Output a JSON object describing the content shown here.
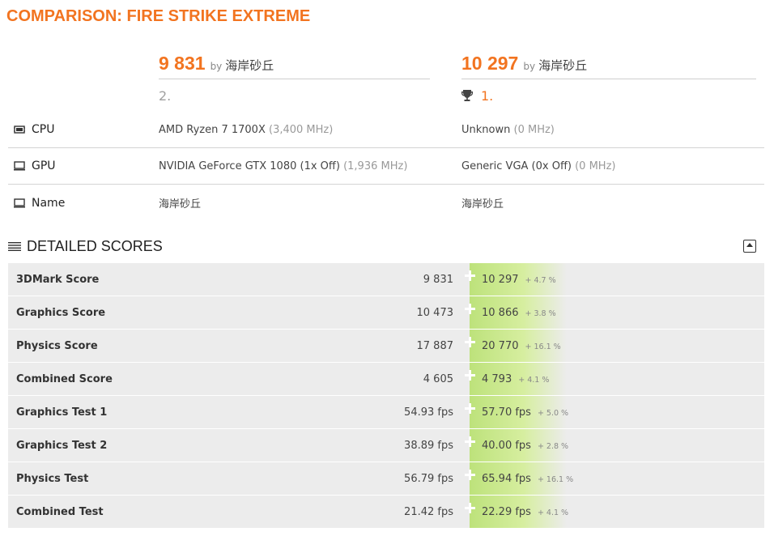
{
  "page": {
    "title": "COMPARISON: FIRE STRIKE EXTREME"
  },
  "results": [
    {
      "score": "9 831",
      "by": "by",
      "user": "海岸砂丘",
      "rank": "2."
    },
    {
      "score": "10 297",
      "by": "by",
      "user": "海岸砂丘",
      "rank": "1."
    }
  ],
  "info": {
    "cpu": {
      "label": "CPU",
      "a_name": "AMD Ryzen 7 1700X",
      "a_clock": "(3,400 MHz)",
      "b_name": "Unknown",
      "b_clock": "(0 MHz)"
    },
    "gpu": {
      "label": "GPU",
      "a_name": "NVIDIA GeForce GTX 1080 (1x Off)",
      "a_clock": "(1,936 MHz)",
      "b_name": "Generic VGA (0x Off)",
      "b_clock": "(0 MHz)"
    },
    "name": {
      "label": "Name",
      "a": "海岸砂丘",
      "b": "海岸砂丘"
    }
  },
  "detailed": {
    "title": "DETAILED SCORES",
    "rows": [
      {
        "label": "3DMark Score",
        "a": "9 831",
        "b": "10 297",
        "diff": "+ 4.7 %"
      },
      {
        "label": "Graphics Score",
        "a": "10 473",
        "b": "10 866",
        "diff": "+ 3.8 %"
      },
      {
        "label": "Physics Score",
        "a": "17 887",
        "b": "20 770",
        "diff": "+ 16.1 %"
      },
      {
        "label": "Combined Score",
        "a": "4 605",
        "b": "4 793",
        "diff": "+ 4.1 %"
      },
      {
        "label": "Graphics Test 1",
        "a": "54.93 fps",
        "b": "57.70 fps",
        "diff": "+ 5.0 %"
      },
      {
        "label": "Graphics Test 2",
        "a": "38.89 fps",
        "b": "40.00 fps",
        "diff": "+ 2.8 %"
      },
      {
        "label": "Physics Test",
        "a": "56.79 fps",
        "b": "65.94 fps",
        "diff": "+ 16.1 %"
      },
      {
        "label": "Combined Test",
        "a": "21.42 fps",
        "b": "22.29 fps",
        "diff": "+ 4.1 %"
      }
    ]
  },
  "colors": {
    "accent": "#f27420",
    "better_bar": "#bde27b",
    "row_bg": "#ececec"
  }
}
